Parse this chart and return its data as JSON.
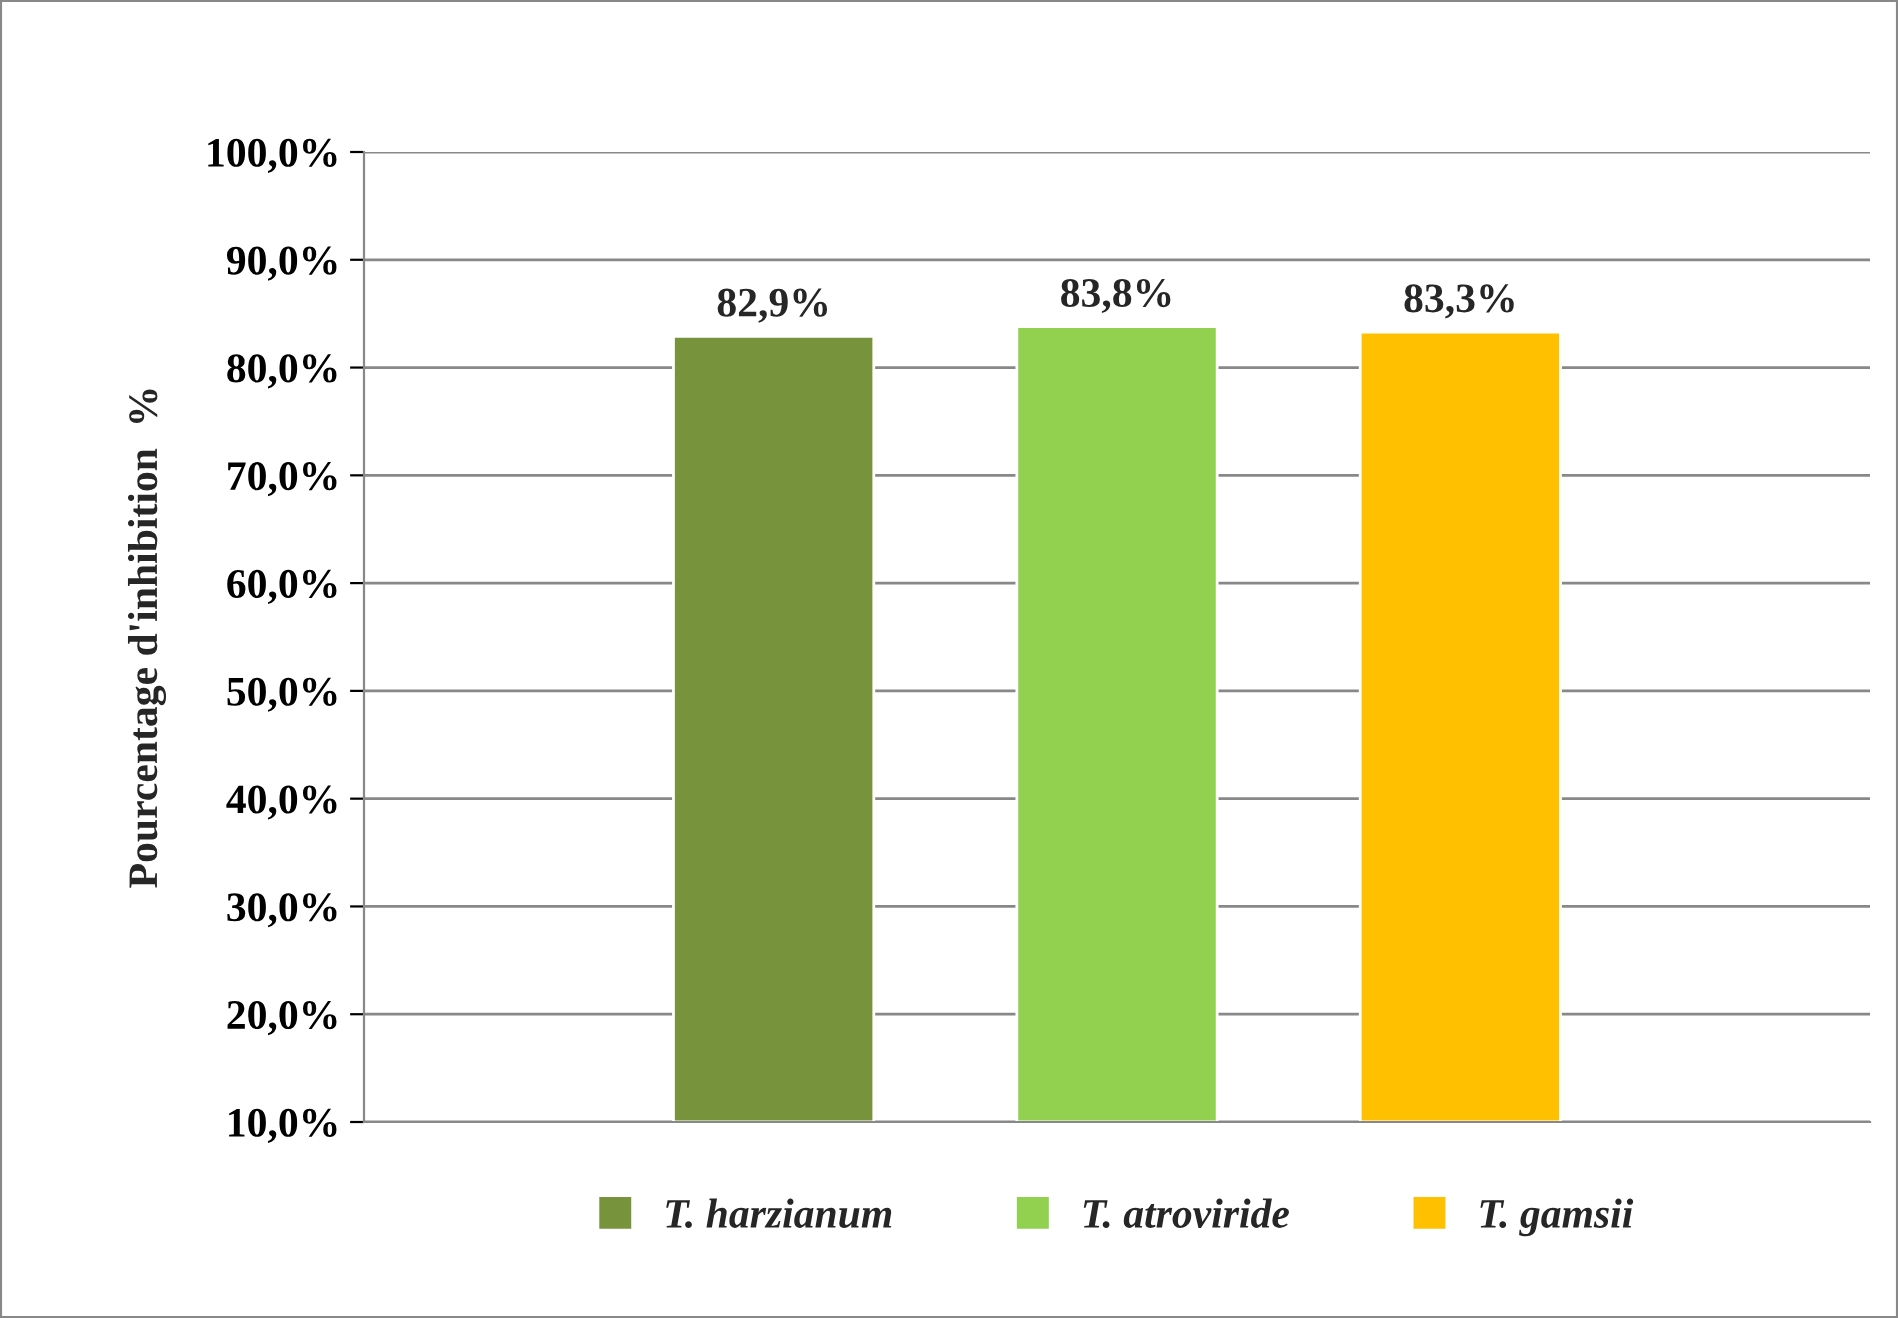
{
  "chart_data": {
    "type": "bar",
    "ylabel": "Pourcentage d'inhibition  %",
    "categories": [
      null
    ],
    "series": [
      {
        "name": "T. harzianum",
        "color": "#77933c",
        "values": [
          82.9
        ],
        "value_labels": [
          "82,9%"
        ]
      },
      {
        "name": "T. atroviride",
        "color": "#92d050",
        "values": [
          83.8
        ],
        "value_labels": [
          "83,8%"
        ]
      },
      {
        "name": "T. gamsii",
        "color": "#ffc000",
        "values": [
          83.3
        ],
        "value_labels": [
          "83,3%"
        ]
      }
    ],
    "ylim": [
      10,
      100
    ],
    "yticks": [
      {
        "value": 10,
        "label": "10,0%"
      },
      {
        "value": 20,
        "label": "20,0%"
      },
      {
        "value": 30,
        "label": "30,0%"
      },
      {
        "value": 40,
        "label": "40,0%"
      },
      {
        "value": 50,
        "label": "50,0%"
      },
      {
        "value": 60,
        "label": "60,0%"
      },
      {
        "value": 70,
        "label": "70,0%"
      },
      {
        "value": 80,
        "label": "80,0%"
      },
      {
        "value": 90,
        "label": "90,0%"
      },
      {
        "value": 100,
        "label": "100,0%"
      }
    ],
    "grid": "y",
    "legend": "bottom"
  }
}
